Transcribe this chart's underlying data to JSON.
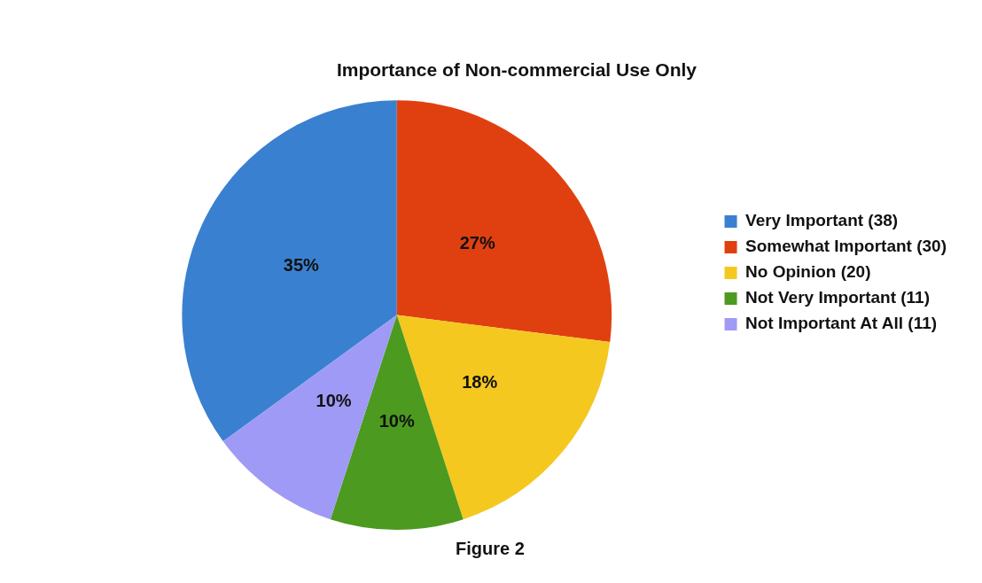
{
  "chart_data": {
    "type": "pie",
    "title": "Importance of Non-commercial Use Only",
    "categories": [
      "Very Important (38)",
      "Somewhat Important (30)",
      "No Opinion (20)",
      "Not Very Important (11)",
      "Not Important At All (11)"
    ],
    "values": [
      35,
      27,
      18,
      10,
      10
    ],
    "value_labels": [
      "35%",
      "27%",
      "18%",
      "10%",
      "10%"
    ],
    "colors": [
      "#3a80d0",
      "#e04010",
      "#f5c820",
      "#4c9a20",
      "#9f9af5"
    ],
    "legend": "right",
    "annotations": [
      "Figure 2"
    ]
  }
}
